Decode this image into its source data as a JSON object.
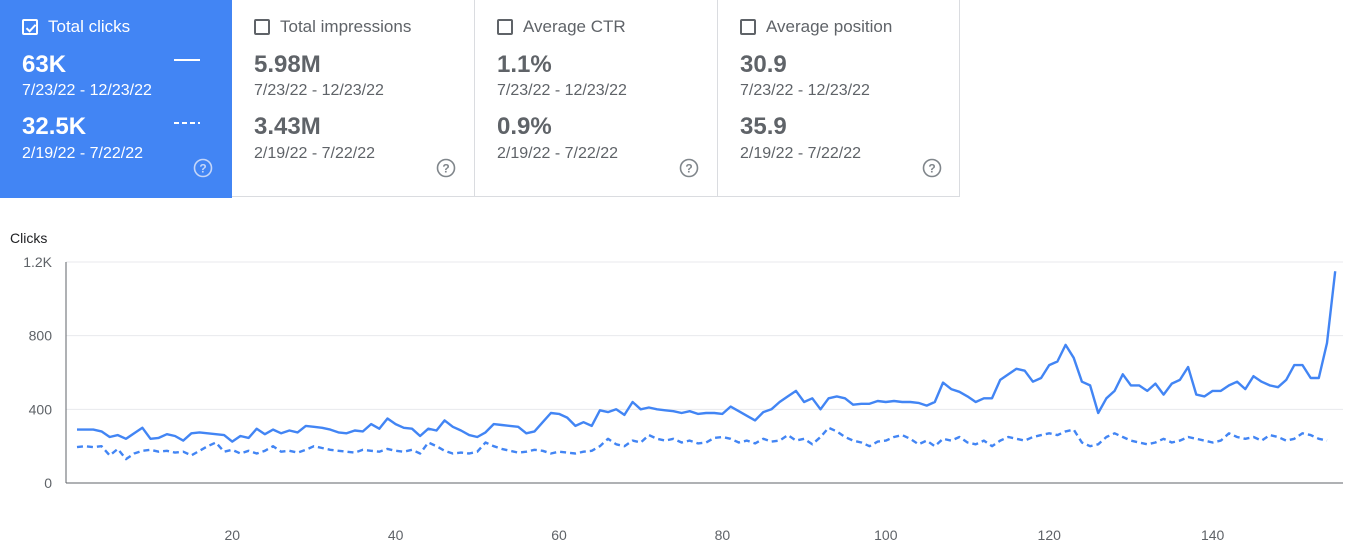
{
  "cards": [
    {
      "label": "Total clicks",
      "checked": true,
      "value_current": "63K",
      "range_current": "7/23/22 - 12/23/22",
      "value_previous": "32.5K",
      "range_previous": "2/19/22 - 7/22/22"
    },
    {
      "label": "Total impressions",
      "checked": false,
      "value_current": "5.98M",
      "range_current": "7/23/22 - 12/23/22",
      "value_previous": "3.43M",
      "range_previous": "2/19/22 - 7/22/22"
    },
    {
      "label": "Average CTR",
      "checked": false,
      "value_current": "1.1%",
      "range_current": "7/23/22 - 12/23/22",
      "value_previous": "0.9%",
      "range_previous": "2/19/22 - 7/22/22"
    },
    {
      "label": "Average position",
      "checked": false,
      "value_current": "30.9",
      "range_current": "7/23/22 - 12/23/22",
      "value_previous": "35.9",
      "range_previous": "2/19/22 - 7/22/22"
    }
  ],
  "icons": {
    "checkbox": "checkbox-icon",
    "help": "help-circle-icon"
  },
  "colors": {
    "accent": "#4285f4",
    "series": "#4285f4"
  },
  "chart_data": {
    "type": "line",
    "ylabel": "Clicks",
    "ylim": [
      0,
      1200
    ],
    "yticks": [
      {
        "value": 0,
        "label": "0"
      },
      {
        "value": 400,
        "label": "400"
      },
      {
        "value": 800,
        "label": "800"
      },
      {
        "value": 1200,
        "label": "1.2K"
      }
    ],
    "xticks": [
      20,
      40,
      60,
      80,
      100,
      120,
      140
    ],
    "xlim": [
      1,
      154
    ],
    "grid": true,
    "series": [
      {
        "style": "solid",
        "values": [
          290,
          290,
          290,
          280,
          250,
          260,
          240,
          270,
          300,
          240,
          245,
          265,
          255,
          230,
          270,
          275,
          270,
          265,
          260,
          225,
          255,
          245,
          295,
          265,
          290,
          270,
          285,
          275,
          310,
          305,
          300,
          290,
          275,
          270,
          285,
          280,
          320,
          295,
          350,
          320,
          300,
          295,
          255,
          295,
          285,
          340,
          305,
          285,
          260,
          250,
          275,
          320,
          315,
          310,
          305,
          270,
          280,
          330,
          380,
          375,
          355,
          310,
          330,
          310,
          395,
          385,
          400,
          370,
          440,
          400,
          410,
          400,
          395,
          390,
          380,
          390,
          375,
          380,
          380,
          375,
          415,
          390,
          365,
          340,
          385,
          400,
          440,
          470,
          500,
          440,
          460,
          400,
          460,
          470,
          460,
          425,
          430,
          430,
          445,
          440,
          445,
          440,
          440,
          435,
          420,
          440,
          545,
          510,
          495,
          470,
          440,
          460,
          460,
          560,
          590,
          620,
          610,
          550,
          570,
          640,
          660,
          750,
          680,
          550,
          530,
          380,
          460,
          500,
          590,
          530,
          530,
          500,
          540,
          480,
          540,
          560,
          630,
          480,
          470,
          500,
          500,
          530,
          550,
          510,
          580,
          550,
          530,
          520,
          560,
          640,
          640,
          570,
          570,
          760,
          1150
        ]
      },
      {
        "style": "dashed",
        "values": [
          195,
          200,
          195,
          200,
          150,
          185,
          130,
          160,
          175,
          180,
          170,
          175,
          165,
          170,
          150,
          175,
          200,
          220,
          170,
          180,
          160,
          175,
          160,
          175,
          200,
          170,
          175,
          165,
          180,
          200,
          190,
          180,
          175,
          170,
          165,
          180,
          175,
          170,
          185,
          175,
          170,
          180,
          160,
          220,
          200,
          175,
          160,
          165,
          160,
          170,
          220,
          200,
          185,
          175,
          165,
          170,
          180,
          175,
          160,
          170,
          165,
          160,
          170,
          175,
          200,
          240,
          210,
          200,
          230,
          220,
          260,
          240,
          230,
          240,
          220,
          230,
          215,
          220,
          245,
          250,
          240,
          220,
          230,
          215,
          240,
          225,
          230,
          260,
          230,
          240,
          210,
          250,
          300,
          280,
          250,
          230,
          220,
          200,
          225,
          230,
          250,
          260,
          240,
          210,
          230,
          200,
          240,
          230,
          250,
          220,
          210,
          230,
          200,
          230,
          250,
          240,
          230,
          250,
          260,
          270,
          260,
          280,
          290,
          220,
          200,
          210,
          250,
          270,
          250,
          230,
          220,
          210,
          220,
          240,
          220,
          230,
          250,
          240,
          230,
          220,
          230,
          270,
          250,
          240,
          250,
          230,
          260,
          250,
          230,
          240,
          270,
          260,
          240,
          230
        ]
      }
    ]
  }
}
